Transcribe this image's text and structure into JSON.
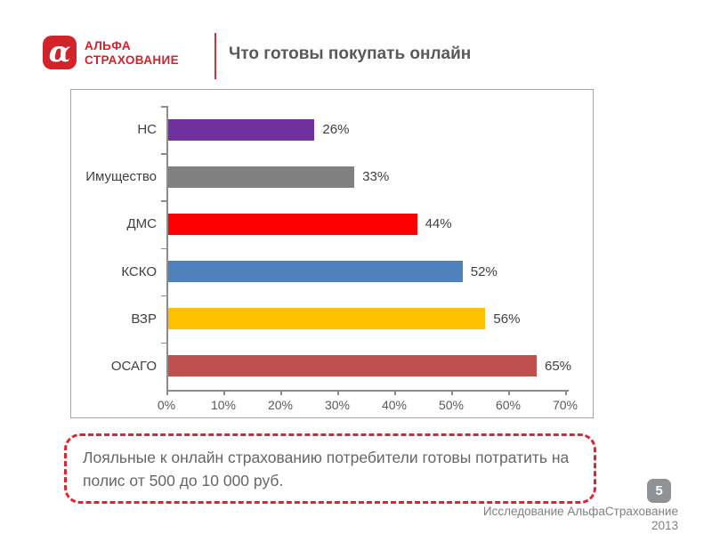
{
  "header": {
    "logo": {
      "alpha_glyph": "α",
      "name_line1": "АЛЬФА",
      "name_line2": "СТРАХОВАНИЕ",
      "brand_color": "#d2232a"
    },
    "title": "Что готовы покупать онлайн"
  },
  "chart_data": {
    "type": "bar",
    "orientation": "horizontal",
    "title": "Что готовы покупать онлайн",
    "xlabel": "",
    "ylabel": "",
    "categories": [
      "НС",
      "Имущество",
      "ДМС",
      "КСКО",
      "ВЗР",
      "ОСАГО"
    ],
    "values": [
      26,
      33,
      44,
      52,
      56,
      65
    ],
    "value_labels": [
      "26%",
      "33%",
      "44%",
      "52%",
      "56%",
      "65%"
    ],
    "bar_colors": [
      "#7030a0",
      "#808080",
      "#ff0000",
      "#4f81bd",
      "#ffc000",
      "#c0504d"
    ],
    "xlim": [
      0,
      70
    ],
    "x_tick_labels": [
      "0%",
      "10%",
      "20%",
      "30%",
      "40%",
      "50%",
      "60%",
      "70%"
    ],
    "grid": false,
    "legend": false
  },
  "callout": {
    "text": "Лояльные к онлайн страхованию потребители готовы потратить на полис от 500 до 10 000 руб.",
    "border_color": "#e0242e"
  },
  "footer": {
    "page_number": "5",
    "source_line1": "Исследование АльфаСтрахование",
    "source_line2": "2013"
  }
}
